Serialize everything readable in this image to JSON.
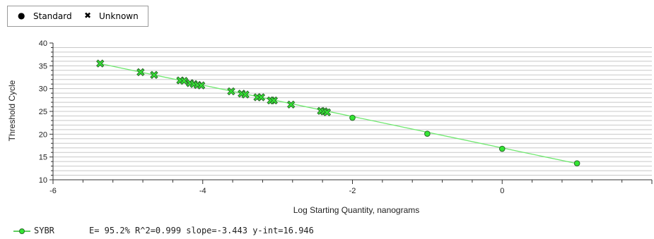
{
  "legend": {
    "standard_label": "Standard",
    "unknown_label": "Unknown",
    "standard_icon": "filled-circle-icon",
    "unknown_icon": "x-mark-icon"
  },
  "chart_data": {
    "type": "scatter",
    "xlabel": "Log Starting Quantity, nanograms",
    "ylabel": "Threshold Cycle",
    "xlim": [
      -6,
      2
    ],
    "ylim": [
      10,
      40
    ],
    "xticks": [
      -6,
      -4,
      -2,
      0
    ],
    "yticks": [
      10,
      15,
      20,
      25,
      30,
      35,
      40
    ],
    "grid": true,
    "series": [
      {
        "name": "Standard",
        "marker": "circle",
        "points": [
          [
            -2,
            23.6
          ],
          [
            -1,
            20.1
          ],
          [
            0,
            16.8
          ],
          [
            1,
            13.6
          ]
        ]
      },
      {
        "name": "Unknown",
        "marker": "x",
        "points": [
          [
            -5.37,
            35.5
          ],
          [
            -4.83,
            33.6
          ],
          [
            -4.65,
            33.0
          ],
          [
            -4.3,
            31.8
          ],
          [
            -4.25,
            31.7
          ],
          [
            -4.17,
            31.2
          ],
          [
            -4.12,
            31.0
          ],
          [
            -4.07,
            30.8
          ],
          [
            -4.02,
            30.7
          ],
          [
            -3.62,
            29.4
          ],
          [
            -3.48,
            28.9
          ],
          [
            -3.43,
            28.7
          ],
          [
            -3.27,
            28.1
          ],
          [
            -3.22,
            28.1
          ],
          [
            -3.09,
            27.4
          ],
          [
            -3.05,
            27.4
          ],
          [
            -2.82,
            26.5
          ],
          [
            -2.42,
            25.1
          ],
          [
            -2.38,
            25.0
          ],
          [
            -2.34,
            24.8
          ]
        ]
      }
    ],
    "fit_line": {
      "x": [
        -5.37,
        1
      ],
      "y": [
        35.48,
        13.55
      ]
    },
    "colors": {
      "marker_fill": "#33e633",
      "marker_stroke": "#2a6a2a",
      "fit_line": "#6ee86e",
      "grid": "#c8c8c8",
      "axis": "#333333"
    }
  },
  "footer": {
    "series_label": "SYBR",
    "stats": "E= 95.2% R^2=0.999 slope=-3.443 y-int=16.946"
  }
}
